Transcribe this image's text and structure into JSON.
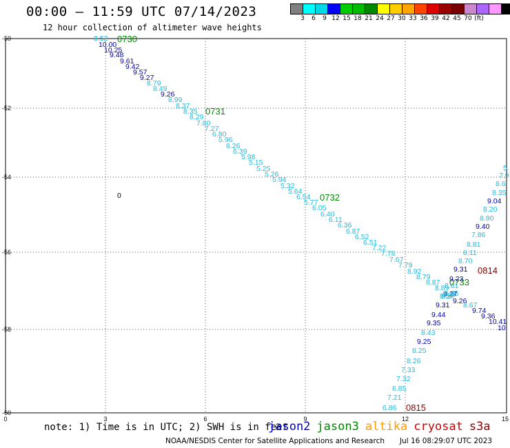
{
  "header": {
    "title": "00:00 – 11:59 UTC 07/14/2023",
    "subtitle": "12 hour collection of altimeter wave heights"
  },
  "colorbar": {
    "unit_label": "(ft)",
    "colors": [
      "#7f7f7f",
      "#00ffff",
      "#00d8e8",
      "#0000ff",
      "#00cc00",
      "#00bb00",
      "#008800",
      "#ffff00",
      "#ffcc00",
      "#ffa500",
      "#ff4400",
      "#dd0000",
      "#990000",
      "#770000",
      "#cc88cc",
      "#aa66ff",
      "#ff99ff",
      "#000000"
    ],
    "labels": [
      "3",
      "6",
      "9",
      "12",
      "15",
      "18",
      "21",
      "24",
      "27",
      "30",
      "33",
      "36",
      "39",
      "42",
      "45",
      "70"
    ]
  },
  "axes": {
    "y_labels": [
      "-50",
      "-52",
      "-54",
      "-56",
      "-58",
      "-60"
    ],
    "x_labels": [
      "0",
      "3",
      "6",
      "9",
      "12",
      "15"
    ]
  },
  "map_labels": {
    "stray_zero": "0"
  },
  "satellite_colors": {
    "jason2": "#0000cc",
    "jason3": "#008800",
    "altika": "#ff9900",
    "cryosat": "#cc0000",
    "s3a": "#880000",
    "swh_light": "#22bbdd",
    "swh_dark": "#0000aa"
  },
  "track_times": [
    {
      "label": "0730",
      "color": "jason3"
    },
    {
      "label": "0731",
      "color": "jason3"
    },
    {
      "label": "0732",
      "color": "jason3"
    },
    {
      "label": "0733",
      "color": "jason3"
    },
    {
      "label": "0814",
      "color": "s3a"
    },
    {
      "label": "0815",
      "color": "s3a"
    }
  ],
  "swh_values": [
    {
      "v": "8.52",
      "c": "swh_light"
    },
    {
      "v": "10.00",
      "c": "swh_dark"
    },
    {
      "v": "10.25",
      "c": "swh_dark"
    },
    {
      "v": "9.48",
      "c": "swh_dark"
    },
    {
      "v": "9.61",
      "c": "swh_dark"
    },
    {
      "v": "9.42",
      "c": "swh_dark"
    },
    {
      "v": "9.57",
      "c": "swh_dark"
    },
    {
      "v": "9.27",
      "c": "swh_dark"
    },
    {
      "v": "8.79",
      "c": "swh_light"
    },
    {
      "v": "8.49",
      "c": "swh_light"
    },
    {
      "v": "9.26",
      "c": "swh_dark"
    },
    {
      "v": "8.99",
      "c": "swh_light"
    },
    {
      "v": "8.37",
      "c": "swh_light"
    },
    {
      "v": "8.35",
      "c": "swh_light"
    },
    {
      "v": "8.29",
      "c": "swh_light"
    },
    {
      "v": "7.80",
      "c": "swh_light"
    },
    {
      "v": "7.27",
      "c": "swh_light"
    },
    {
      "v": "6.80",
      "c": "swh_light"
    },
    {
      "v": "5.96",
      "c": "swh_light"
    },
    {
      "v": "6.26",
      "c": "swh_light"
    },
    {
      "v": "6.39",
      "c": "swh_light"
    },
    {
      "v": "5.98",
      "c": "swh_light"
    },
    {
      "v": "5.15",
      "c": "swh_light"
    },
    {
      "v": "5.25",
      "c": "swh_light"
    },
    {
      "v": "5.26",
      "c": "swh_light"
    },
    {
      "v": "5.94",
      "c": "swh_light"
    },
    {
      "v": "5.32",
      "c": "swh_light"
    },
    {
      "v": "5.64",
      "c": "swh_light"
    },
    {
      "v": "6.54",
      "c": "swh_light"
    },
    {
      "v": "5.77",
      "c": "swh_light"
    },
    {
      "v": "6.05",
      "c": "swh_light"
    },
    {
      "v": "6.40",
      "c": "swh_light"
    },
    {
      "v": "6.11",
      "c": "swh_light"
    },
    {
      "v": "6.36",
      "c": "swh_light"
    },
    {
      "v": "6.87",
      "c": "swh_light"
    },
    {
      "v": "6.52",
      "c": "swh_light"
    },
    {
      "v": "6.51",
      "c": "swh_light"
    },
    {
      "v": "7.22",
      "c": "swh_light"
    },
    {
      "v": "7.78",
      "c": "swh_light"
    },
    {
      "v": "7.67",
      "c": "swh_light"
    },
    {
      "v": "7.79",
      "c": "swh_light"
    },
    {
      "v": "8.92",
      "c": "swh_light"
    },
    {
      "v": "8.79",
      "c": "swh_light"
    },
    {
      "v": "8.87",
      "c": "swh_light"
    },
    {
      "v": "8.89",
      "c": "swh_light"
    },
    {
      "v": "8.95",
      "c": "swh_light"
    },
    {
      "v": "9.27",
      "c": "swh_dark"
    },
    {
      "v": "8.57",
      "c": "swh_light"
    },
    {
      "v": "9.26",
      "c": "swh_dark"
    },
    {
      "v": "8.67",
      "c": "swh_light"
    },
    {
      "v": "9.74",
      "c": "swh_dark"
    },
    {
      "v": "9.36",
      "c": "swh_dark"
    },
    {
      "v": "10.41",
      "c": "swh_dark"
    },
    {
      "v": "10.",
      "c": "swh_dark"
    },
    {
      "v": "6.86",
      "c": "swh_light"
    },
    {
      "v": "7.21",
      "c": "swh_light"
    },
    {
      "v": "6.85",
      "c": "swh_light"
    },
    {
      "v": "7.32",
      "c": "swh_light"
    },
    {
      "v": "7.33",
      "c": "swh_light"
    },
    {
      "v": "8.26",
      "c": "swh_light"
    },
    {
      "v": "8.25",
      "c": "swh_light"
    },
    {
      "v": "9.25",
      "c": "swh_dark"
    },
    {
      "v": "8.43",
      "c": "swh_light"
    },
    {
      "v": "9.35",
      "c": "swh_dark"
    },
    {
      "v": "9.44",
      "c": "swh_dark"
    },
    {
      "v": "9.31",
      "c": "swh_dark"
    },
    {
      "v": "8.57",
      "c": "swh_light"
    },
    {
      "v": "8.61",
      "c": "swh_light"
    },
    {
      "v": "9.23",
      "c": "swh_dark"
    },
    {
      "v": "9.31",
      "c": "swh_dark"
    },
    {
      "v": "8.70",
      "c": "swh_light"
    },
    {
      "v": "8.81",
      "c": "swh_light"
    },
    {
      "v": "7.86",
      "c": "swh_light"
    },
    {
      "v": "9.40",
      "c": "swh_dark"
    },
    {
      "v": "8.90",
      "c": "swh_light"
    },
    {
      "v": "8.20",
      "c": "swh_light"
    },
    {
      "v": "9.04",
      "c": "swh_dark"
    },
    {
      "v": "8.35",
      "c": "swh_light"
    },
    {
      "v": "8.6",
      "c": "swh_light"
    },
    {
      "v": "7.9",
      "c": "swh_light"
    },
    {
      "v": "5.",
      "c": "swh_light"
    },
    {
      "v": "8.11",
      "c": "swh_light"
    }
  ],
  "footer": {
    "note": "note: 1) Time is in UTC; 2) SWH is in feet",
    "legend": [
      "jason2",
      "jason3",
      "altika",
      "cryosat",
      "s3a"
    ],
    "credit": "NOAA/NESDIS Center for Satellite Applications and Research",
    "generated": "Jul 16 08:29:07 UTC 2023"
  }
}
